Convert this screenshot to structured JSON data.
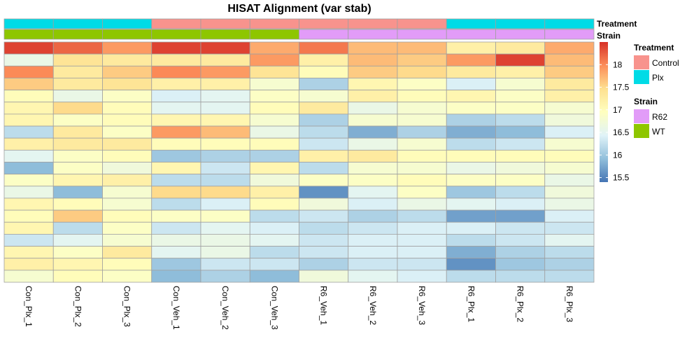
{
  "chart_data": {
    "type": "heatmap",
    "title": "HISAT Alignment (var stab)",
    "columns": [
      "Con_Plx_1",
      "Con_Plx_2",
      "Con_Plx_3",
      "Con_Veh_1",
      "Con_Veh_2",
      "Con_Veh_3",
      "R6_Veh_1",
      "R6_Veh_2",
      "R6_Veh_3",
      "R6_Plx_1",
      "R6_Plx_2",
      "R6_Plx_3"
    ],
    "annotations": {
      "Treatment": [
        "Plx",
        "Plx",
        "Plx",
        "Control",
        "Control",
        "Control",
        "Control",
        "Control",
        "Control",
        "Plx",
        "Plx",
        "Plx"
      ],
      "Strain": [
        "WT",
        "WT",
        "WT",
        "WT",
        "WT",
        "WT",
        "R62",
        "R62",
        "R62",
        "R62",
        "R62",
        "R62"
      ]
    },
    "annotation_colors": {
      "Treatment": {
        "Control": "#F8938D",
        "Plx": "#00DBE6"
      },
      "Strain": {
        "R62": "#E29CF8",
        "WT": "#8EC600"
      }
    },
    "values": [
      [
        18.4,
        18.2,
        17.9,
        18.4,
        18.4,
        17.8,
        18.1,
        17.7,
        17.7,
        17.2,
        17.3,
        17.8
      ],
      [
        16.6,
        17.4,
        17.3,
        17.3,
        17.3,
        17.9,
        17.2,
        17.7,
        17.6,
        17.9,
        18.4,
        17.7
      ],
      [
        18.0,
        17.3,
        17.6,
        18.0,
        17.9,
        17.4,
        17.0,
        17.6,
        17.5,
        17.3,
        17.2,
        17.6
      ],
      [
        17.6,
        17.3,
        17.4,
        17.2,
        17.2,
        16.8,
        16.1,
        17.1,
        16.9,
        16.4,
        16.8,
        17.3
      ],
      [
        17.0,
        16.6,
        16.9,
        16.4,
        16.5,
        16.9,
        16.8,
        17.2,
        17.0,
        17.1,
        16.9,
        17.2
      ],
      [
        17.1,
        17.5,
        17.0,
        16.5,
        16.5,
        17.0,
        17.3,
        16.6,
        16.8,
        16.9,
        16.9,
        16.8
      ],
      [
        17.1,
        16.9,
        17.0,
        17.1,
        17.1,
        16.8,
        16.1,
        16.8,
        16.8,
        16.1,
        16.2,
        16.7
      ],
      [
        16.2,
        17.3,
        16.9,
        17.9,
        17.7,
        16.6,
        16.2,
        15.8,
        16.1,
        15.8,
        15.9,
        16.4
      ],
      [
        17.2,
        17.3,
        17.3,
        17.0,
        17.0,
        17.0,
        16.3,
        16.6,
        16.8,
        16.2,
        16.3,
        16.8
      ],
      [
        16.5,
        16.9,
        17.0,
        16.0,
        16.1,
        16.1,
        17.2,
        17.3,
        17.0,
        17.0,
        17.0,
        17.0
      ],
      [
        15.9,
        16.9,
        16.7,
        17.1,
        16.3,
        17.1,
        16.2,
        16.8,
        16.8,
        16.6,
        16.7,
        16.8
      ],
      [
        16.9,
        17.1,
        17.2,
        16.2,
        16.2,
        16.7,
        16.9,
        16.9,
        17.0,
        16.9,
        16.9,
        16.6
      ],
      [
        16.6,
        15.9,
        16.8,
        17.5,
        17.5,
        17.2,
        15.6,
        16.5,
        16.9,
        16.0,
        16.2,
        16.7
      ],
      [
        17.1,
        17.0,
        16.8,
        16.2,
        16.4,
        17.0,
        16.7,
        16.4,
        16.6,
        16.5,
        16.4,
        16.6
      ],
      [
        17.0,
        17.6,
        17.0,
        16.9,
        16.9,
        16.2,
        16.3,
        16.1,
        16.2,
        15.7,
        15.7,
        16.4
      ],
      [
        17.1,
        16.2,
        16.9,
        16.3,
        16.5,
        16.4,
        16.2,
        16.3,
        16.4,
        16.4,
        16.3,
        16.3
      ],
      [
        16.3,
        16.5,
        16.8,
        16.6,
        16.6,
        16.5,
        16.3,
        16.4,
        16.4,
        16.2,
        16.3,
        16.5
      ],
      [
        17.1,
        16.9,
        17.3,
        16.5,
        16.6,
        16.2,
        16.3,
        16.4,
        16.4,
        15.8,
        16.1,
        16.2
      ],
      [
        17.2,
        17.1,
        17.0,
        16.0,
        16.3,
        16.3,
        16.1,
        16.3,
        16.3,
        15.6,
        16.0,
        16.1
      ],
      [
        16.8,
        17.0,
        16.9,
        15.9,
        16.1,
        15.9,
        16.7,
        16.5,
        16.4,
        16.2,
        16.2,
        16.2
      ]
    ],
    "color_scale": {
      "range": [
        15.4,
        18.5
      ],
      "colors": [
        "#4575B4",
        "#91BFDB",
        "#E0F3F8",
        "#FFFFBF",
        "#FEE090",
        "#FC8D59",
        "#D73027"
      ],
      "ticks": [
        15.5,
        16,
        16.5,
        17,
        17.5,
        18
      ]
    },
    "legend": {
      "treatment_title": "Treatment",
      "strain_title": "Strain",
      "items_treatment": [
        "Control",
        "Plx"
      ],
      "items_strain": [
        "R62",
        "WT"
      ]
    }
  }
}
